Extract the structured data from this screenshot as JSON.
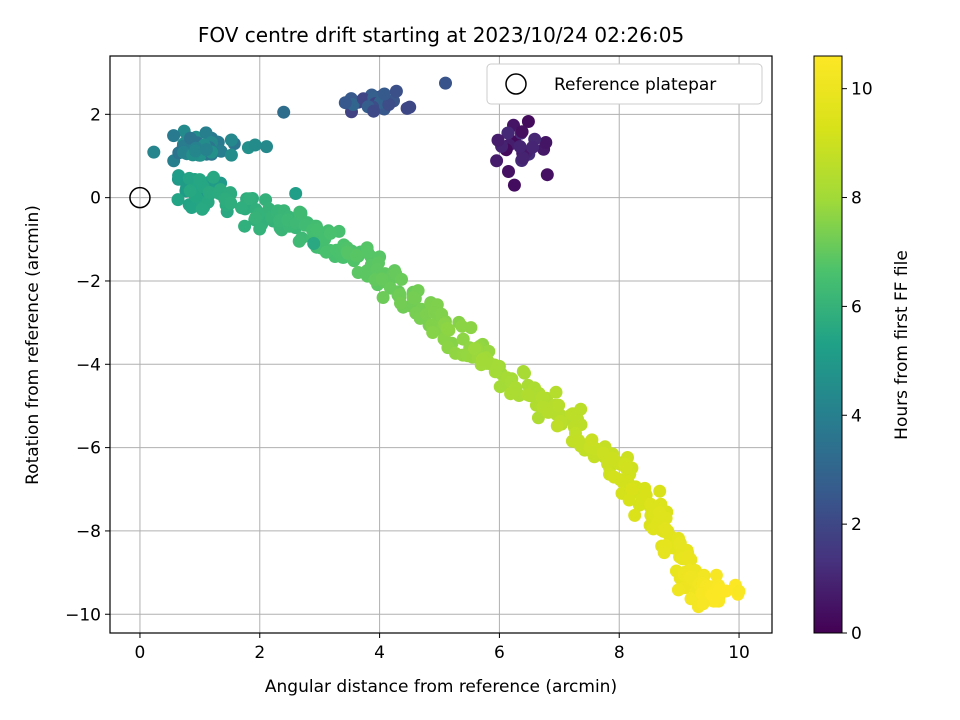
{
  "chart_data": {
    "type": "scatter",
    "title": "FOV centre drift starting at 2023/10/24 02:26:05",
    "xlabel": "Angular distance from reference (arcmin)",
    "ylabel": "Rotation from reference (arcmin)",
    "xlim": [
      -0.5,
      10.55
    ],
    "ylim": [
      -10.45,
      3.4
    ],
    "xticks": [
      0,
      2,
      4,
      6,
      8,
      10
    ],
    "yticks": [
      -10,
      -8,
      -6,
      -4,
      -2,
      0,
      2
    ],
    "xtick_labels": [
      "0",
      "2",
      "4",
      "6",
      "8",
      "10"
    ],
    "ytick_labels": [
      "−10",
      "−8",
      "−6",
      "−4",
      "−2",
      "0",
      "2"
    ],
    "grid": true,
    "legend": {
      "placement": "top-right",
      "label": "Reference platepar"
    },
    "reference_point": {
      "x": 0,
      "y": 0
    },
    "colorbar": {
      "label": "Hours from first FF file",
      "range": [
        0,
        10.6
      ],
      "ticks": [
        0,
        2,
        4,
        6,
        8,
        10
      ],
      "tick_labels": [
        "0",
        "2",
        "4",
        "6",
        "8",
        "10"
      ],
      "colormap": "viridis"
    },
    "series_clusters": [
      {
        "hours": [
          0.2,
          1.2
        ],
        "center": [
          6.4,
          1.2
        ],
        "spread": [
          0.35,
          0.55
        ],
        "count": 22
      },
      {
        "hours": [
          1.8,
          3.0
        ],
        "center": [
          3.9,
          2.3
        ],
        "spread": [
          0.55,
          0.25
        ],
        "count": 26
      },
      {
        "hours": [
          3.5,
          4.8
        ],
        "center": [
          1.0,
          1.25
        ],
        "spread": [
          0.7,
          0.3
        ],
        "count": 40
      },
      {
        "hours": [
          4.8,
          5.6
        ],
        "center": [
          1.0,
          0.3
        ],
        "spread": [
          0.5,
          0.25
        ],
        "count": 20
      }
    ],
    "series_trend": {
      "hours": [
        5.4,
        10.6
      ],
      "path": [
        [
          0.7,
          0.1
        ],
        [
          2.0,
          -0.3
        ],
        [
          3.0,
          -0.9
        ],
        [
          4.0,
          -1.8
        ],
        [
          5.0,
          -3.0
        ],
        [
          6.0,
          -4.2
        ],
        [
          7.0,
          -5.2
        ],
        [
          8.0,
          -6.6
        ],
        [
          8.8,
          -8.0
        ],
        [
          9.2,
          -9.3
        ],
        [
          9.8,
          -9.5
        ]
      ],
      "count": 380
    },
    "outliers": [
      {
        "x": 5.1,
        "y": 2.75,
        "hours": 2.4
      },
      {
        "x": 2.4,
        "y": 2.05,
        "hours": 3.3
      },
      {
        "x": 6.25,
        "y": 0.3,
        "hours": 0.3
      },
      {
        "x": 6.8,
        "y": 0.55,
        "hours": 0.4
      },
      {
        "x": 2.9,
        "y": -1.1,
        "hours": 5.6
      },
      {
        "x": 2.6,
        "y": 0.1,
        "hours": 5.2
      },
      {
        "x": 10.0,
        "y": -9.45,
        "hours": 10.5
      },
      {
        "x": 9.4,
        "y": -9.75,
        "hours": 10.4
      }
    ]
  }
}
